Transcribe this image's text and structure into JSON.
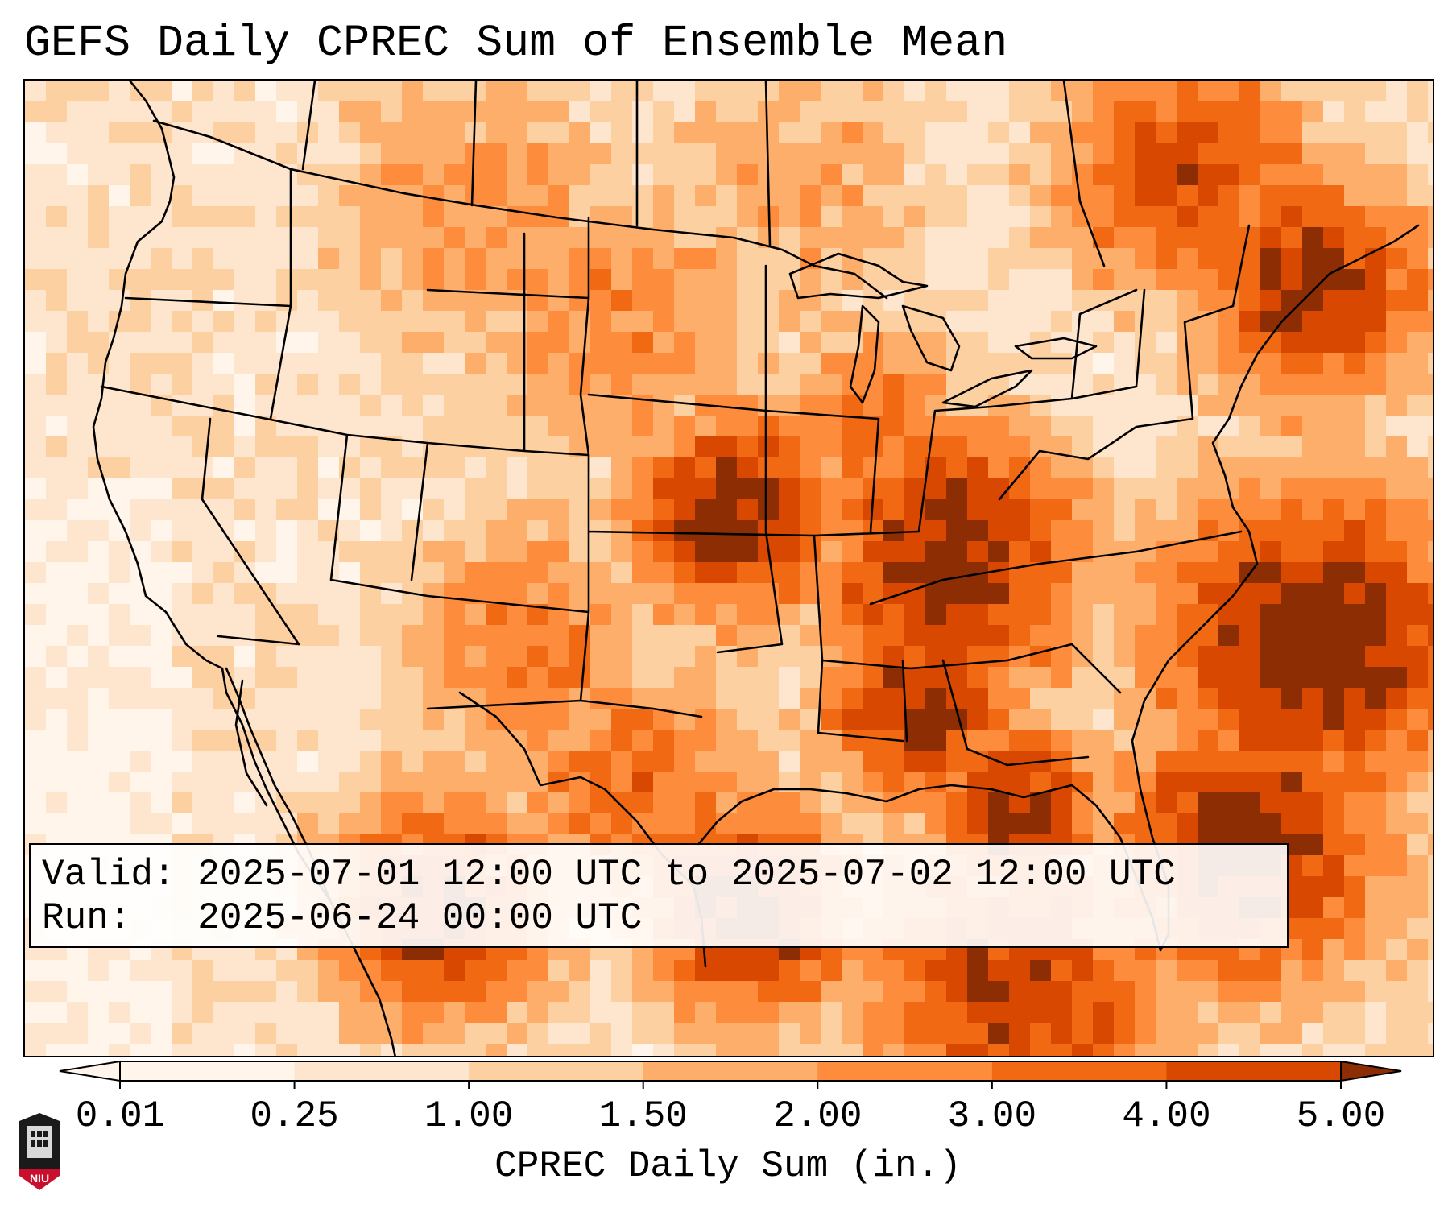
{
  "title": "GEFS Daily CPREC Sum of Ensemble Mean",
  "info": {
    "valid_label": "Valid:",
    "valid_value": "2025-07-01 12:00 UTC to 2025-07-02 12:00 UTC",
    "run_label": "Run:",
    "run_value": "2025-06-24 00:00 UTC"
  },
  "colorbar": {
    "label": "CPREC Daily Sum (in.)",
    "ticks": [
      "0.01",
      "0.25",
      "1.00",
      "1.50",
      "2.00",
      "3.00",
      "4.00",
      "5.00"
    ],
    "colors": [
      "#fff5eb",
      "#fee6ce",
      "#fdd0a2",
      "#fdae6b",
      "#fd8d3c",
      "#f16913",
      "#d94801",
      "#8c2d04"
    ],
    "extend": "both"
  },
  "logo": {
    "text": "NIU"
  },
  "colors": {
    "level0": "#fff5eb",
    "level1": "#fee6ce",
    "level2": "#fdd0a2",
    "level3": "#fdae6b",
    "level4": "#fd8d3c",
    "level5": "#f16913",
    "level6": "#d94801",
    "level7": "#8c2d04",
    "outline": "#000000"
  }
}
